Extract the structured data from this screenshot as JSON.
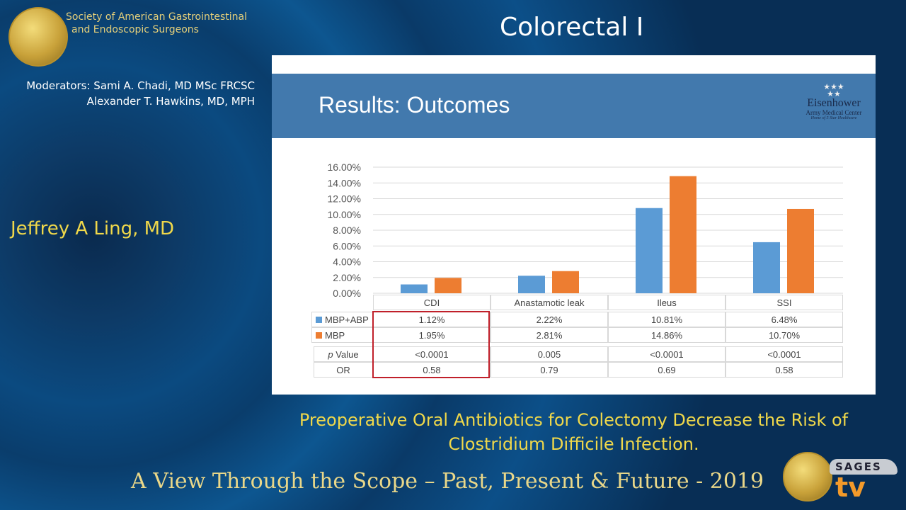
{
  "header": {
    "org_line1": "Society of American Gastrointestinal",
    "org_line2": "and Endoscopic Surgeons",
    "session_title": "Colorectal I"
  },
  "moderators": {
    "line1": "Moderators: Sami A. Chadi, MD MSc FRCSC",
    "line2": "Alexander T. Hawkins, MD, MPH"
  },
  "speaker": "Jeffrey A Ling, MD",
  "slide": {
    "title": "Results: Outcomes",
    "logo_name": "Eisenhower",
    "logo_sub": "Army Medical Center",
    "logo_tag": "Home of 5 Star Healthcare"
  },
  "caption": {
    "line1": "Preoperative Oral Antibiotics for Colectomy Decrease the Risk of",
    "line2": "Clostridium Difficile Infection."
  },
  "footer": {
    "tagline": "A View Through the Scope – Past, Present & Future - 2019",
    "brand_top": "SAGES",
    "brand_bottom": "tv"
  },
  "chart_data": {
    "type": "bar",
    "categories": [
      "CDI",
      "Anastamotic leak",
      "Ileus",
      "SSI"
    ],
    "series": [
      {
        "name": "MBP+ABP",
        "color": "#5b9bd5",
        "values": [
          1.12,
          2.22,
          10.81,
          6.48
        ],
        "labels": [
          "1.12%",
          "2.22%",
          "10.81%",
          "6.48%"
        ]
      },
      {
        "name": "MBP",
        "color": "#ed7d31",
        "values": [
          1.95,
          2.81,
          14.86,
          10.7
        ],
        "labels": [
          "1.95%",
          "2.81%",
          "14.86%",
          "10.70%"
        ]
      }
    ],
    "ylim": [
      0,
      16
    ],
    "yticks": [
      "0.00%",
      "2.00%",
      "4.00%",
      "6.00%",
      "8.00%",
      "10.00%",
      "12.00%",
      "14.00%",
      "16.00%"
    ],
    "grid": true,
    "legend": "data-table",
    "extra_rows": [
      {
        "label_prefix": "p",
        "label": " Value",
        "values": [
          "<0.0001",
          "0.005",
          "<0.0001",
          "<0.0001"
        ]
      },
      {
        "label": "OR",
        "values": [
          "0.58",
          "0.79",
          "0.69",
          "0.58"
        ]
      }
    ],
    "highlight": "CDI",
    "highlight_color": "#c0202a"
  }
}
